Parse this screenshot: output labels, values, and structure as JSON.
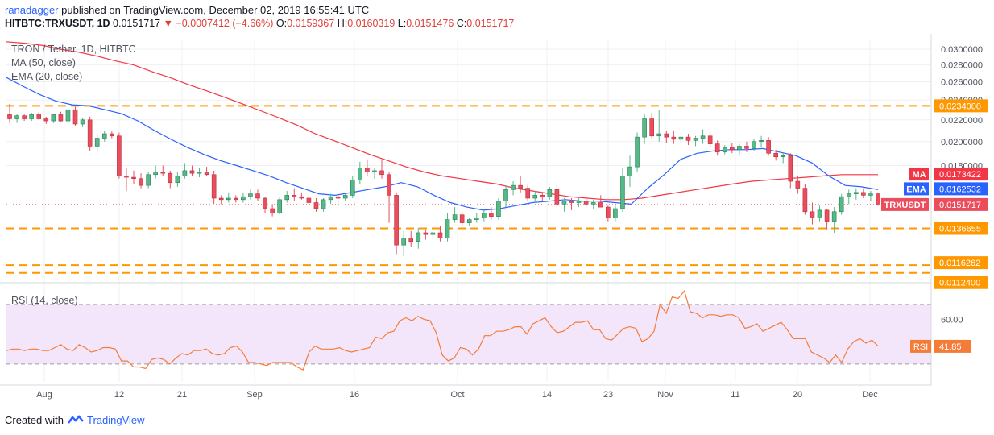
{
  "header": {
    "author": "ranadagger",
    "published": "published on TradingView.com, December 02, 2019 16:55:41 UTC",
    "symbol": "HITBTC:TRXUSDT, 1D",
    "last": "0.0151717",
    "change": "−0.0007412 (−4.66%)",
    "o_label": "O:",
    "o": "0.0159367",
    "h_label": "H:",
    "h": "0.0160319",
    "l_label": "L:",
    "l": "0.0151476",
    "c_label": "C:",
    "c": "0.0151717"
  },
  "legend": {
    "title": "TRON / Tether, 1D, HITBTC",
    "ma": "MA (50, close)",
    "ema": "EMA (20, close)",
    "rsi": "RSI (14, close)"
  },
  "colors": {
    "up": "#53b987",
    "down": "#eb4d5c",
    "ma": "#f23645",
    "ema": "#2962ff",
    "level": "#ff9800",
    "rsi_line": "#f57c38",
    "rsi_band": "#f3e6fb",
    "price_tag": "#eb4d5c"
  },
  "chart_data": [
    {
      "type": "candlestick",
      "title": "TRON / Tether, 1D, HITBTC",
      "x_ticks": [
        "Aug",
        "12",
        "21",
        "Sep",
        "16",
        "Oct",
        "14",
        "23",
        "Nov",
        "11",
        "20",
        "Dec"
      ],
      "y_ticks": [
        "0.0300000",
        "0.0280000",
        "0.0260000",
        "0.0240000",
        "0.0220000",
        "0.0200000",
        "0.0180000"
      ],
      "ylim": [
        0.0108,
        0.0312
      ],
      "log_scale": true,
      "grid": true,
      "horizontal_levels": [
        {
          "value": 0.0234,
          "label": "0.0234000"
        },
        {
          "value": 0.0136655,
          "label": "0.0136655"
        },
        {
          "value": 0.0116262,
          "label": "0.0116262"
        },
        {
          "value": 0.01124,
          "label": "0.0112400"
        }
      ],
      "price_tags": [
        {
          "name": "MA",
          "value": 0.0173422,
          "label": "0.0173422"
        },
        {
          "name": "EMA",
          "value": 0.0162532,
          "label": "0.0162532"
        },
        {
          "name": "TRXUSDT",
          "value": 0.0151717,
          "label": "0.0151717"
        }
      ],
      "candles": [
        [
          0.0225,
          0.0236,
          0.0217,
          0.0221
        ],
        [
          0.0221,
          0.0226,
          0.0217,
          0.0224
        ],
        [
          0.0224,
          0.0226,
          0.0219,
          0.0221
        ],
        [
          0.0221,
          0.0227,
          0.0219,
          0.0225
        ],
        [
          0.0225,
          0.0228,
          0.022,
          0.0221
        ],
        [
          0.0221,
          0.0223,
          0.0216,
          0.0219
        ],
        [
          0.0219,
          0.0226,
          0.0217,
          0.0225
        ],
        [
          0.0225,
          0.0228,
          0.0218,
          0.0219
        ],
        [
          0.0219,
          0.0232,
          0.0216,
          0.023
        ],
        [
          0.023,
          0.0233,
          0.0214,
          0.0216
        ],
        [
          0.0216,
          0.0222,
          0.0213,
          0.022
        ],
        [
          0.022,
          0.0223,
          0.0192,
          0.0196
        ],
        [
          0.0196,
          0.0206,
          0.0192,
          0.0203
        ],
        [
          0.0203,
          0.021,
          0.02,
          0.0207
        ],
        [
          0.0207,
          0.0209,
          0.0203,
          0.0205
        ],
        [
          0.0205,
          0.0208,
          0.017,
          0.0172
        ],
        [
          0.0172,
          0.0178,
          0.0161,
          0.0171
        ],
        [
          0.0171,
          0.0176,
          0.0166,
          0.017
        ],
        [
          0.017,
          0.0174,
          0.0163,
          0.0165
        ],
        [
          0.0165,
          0.0175,
          0.0163,
          0.0173
        ],
        [
          0.0173,
          0.018,
          0.017,
          0.0175
        ],
        [
          0.0175,
          0.018,
          0.0172,
          0.0174
        ],
        [
          0.0174,
          0.0176,
          0.0163,
          0.0167
        ],
        [
          0.0167,
          0.0175,
          0.0164,
          0.0172
        ],
        [
          0.0172,
          0.0182,
          0.017,
          0.0176
        ],
        [
          0.0176,
          0.018,
          0.0172,
          0.0174
        ],
        [
          0.0174,
          0.0178,
          0.0171,
          0.0175
        ],
        [
          0.0175,
          0.0179,
          0.0172,
          0.0173
        ],
        [
          0.0173,
          0.0176,
          0.0152,
          0.0156
        ],
        [
          0.0156,
          0.0158,
          0.0152,
          0.0155
        ],
        [
          0.0155,
          0.016,
          0.0153,
          0.0156
        ],
        [
          0.0156,
          0.0158,
          0.0153,
          0.0155
        ],
        [
          0.0155,
          0.016,
          0.0153,
          0.0157
        ],
        [
          0.0157,
          0.0162,
          0.0155,
          0.0159
        ],
        [
          0.0159,
          0.0162,
          0.0154,
          0.0156
        ],
        [
          0.0156,
          0.0157,
          0.0146,
          0.0149
        ],
        [
          0.0149,
          0.0152,
          0.0144,
          0.0146
        ],
        [
          0.0146,
          0.0157,
          0.0145,
          0.0155
        ],
        [
          0.0155,
          0.0161,
          0.0153,
          0.0158
        ],
        [
          0.0158,
          0.0163,
          0.0154,
          0.0157
        ],
        [
          0.0157,
          0.016,
          0.0155,
          0.0156
        ],
        [
          0.0156,
          0.0158,
          0.0151,
          0.0153
        ],
        [
          0.0153,
          0.0156,
          0.0147,
          0.0149
        ],
        [
          0.0149,
          0.0156,
          0.0147,
          0.0155
        ],
        [
          0.0155,
          0.0159,
          0.0152,
          0.0157
        ],
        [
          0.0157,
          0.016,
          0.0153,
          0.0156
        ],
        [
          0.0156,
          0.0159,
          0.0154,
          0.0158
        ],
        [
          0.0158,
          0.0172,
          0.0156,
          0.0169
        ],
        [
          0.0169,
          0.0183,
          0.0166,
          0.0178
        ],
        [
          0.0178,
          0.0185,
          0.0172,
          0.0175
        ],
        [
          0.0175,
          0.0178,
          0.017,
          0.0176
        ],
        [
          0.0176,
          0.0185,
          0.017,
          0.0173
        ],
        [
          0.0173,
          0.0175,
          0.014,
          0.0158
        ],
        [
          0.0158,
          0.016,
          0.0122,
          0.0127
        ],
        [
          0.0127,
          0.0135,
          0.0121,
          0.0131
        ],
        [
          0.0131,
          0.0135,
          0.0126,
          0.0129
        ],
        [
          0.0129,
          0.0137,
          0.0125,
          0.0134
        ],
        [
          0.0134,
          0.0136,
          0.013,
          0.0133
        ],
        [
          0.0133,
          0.0136,
          0.013,
          0.0134
        ],
        [
          0.0134,
          0.0138,
          0.0129,
          0.0131
        ],
        [
          0.0131,
          0.0146,
          0.0129,
          0.0142
        ],
        [
          0.0142,
          0.015,
          0.014,
          0.0145
        ],
        [
          0.0145,
          0.0147,
          0.0138,
          0.014
        ],
        [
          0.014,
          0.0143,
          0.0138,
          0.0142
        ],
        [
          0.0142,
          0.0146,
          0.014,
          0.0143
        ],
        [
          0.0143,
          0.0148,
          0.0141,
          0.0146
        ],
        [
          0.0146,
          0.015,
          0.0142,
          0.0144
        ],
        [
          0.0144,
          0.0156,
          0.0142,
          0.0154
        ],
        [
          0.0154,
          0.0165,
          0.015,
          0.0162
        ],
        [
          0.0162,
          0.0168,
          0.0158,
          0.0165
        ],
        [
          0.0165,
          0.0172,
          0.016,
          0.0163
        ],
        [
          0.0163,
          0.0165,
          0.0154,
          0.0156
        ],
        [
          0.0156,
          0.0161,
          0.0153,
          0.0158
        ],
        [
          0.0158,
          0.016,
          0.0154,
          0.0157
        ],
        [
          0.0157,
          0.0164,
          0.0155,
          0.0162
        ],
        [
          0.0162,
          0.0165,
          0.015,
          0.0152
        ],
        [
          0.0152,
          0.0156,
          0.0147,
          0.0154
        ],
        [
          0.0154,
          0.0156,
          0.0148,
          0.0153
        ],
        [
          0.0153,
          0.0156,
          0.015,
          0.0154
        ],
        [
          0.0154,
          0.0156,
          0.015,
          0.0152
        ],
        [
          0.0152,
          0.0155,
          0.0149,
          0.0153
        ],
        [
          0.0153,
          0.0158,
          0.0151,
          0.015
        ],
        [
          0.015,
          0.0151,
          0.0141,
          0.0143
        ],
        [
          0.0143,
          0.0152,
          0.0141,
          0.0149
        ],
        [
          0.0149,
          0.0178,
          0.0147,
          0.0172
        ],
        [
          0.0172,
          0.0188,
          0.0164,
          0.0179
        ],
        [
          0.0179,
          0.0208,
          0.0175,
          0.0204
        ],
        [
          0.0204,
          0.0226,
          0.0198,
          0.0221
        ],
        [
          0.0221,
          0.0227,
          0.0203,
          0.0205
        ],
        [
          0.0205,
          0.023,
          0.02,
          0.0207
        ],
        [
          0.0207,
          0.021,
          0.0199,
          0.0204
        ],
        [
          0.0204,
          0.021,
          0.0198,
          0.0202
        ],
        [
          0.0202,
          0.0206,
          0.0198,
          0.0204
        ],
        [
          0.0204,
          0.0207,
          0.0197,
          0.0201
        ],
        [
          0.0201,
          0.0205,
          0.0196,
          0.0203
        ],
        [
          0.0203,
          0.0211,
          0.0198,
          0.0205
        ],
        [
          0.0205,
          0.0208,
          0.0195,
          0.0198
        ],
        [
          0.0198,
          0.0201,
          0.0188,
          0.0191
        ],
        [
          0.0191,
          0.0197,
          0.0189,
          0.0195
        ],
        [
          0.0195,
          0.0199,
          0.019,
          0.0193
        ],
        [
          0.0193,
          0.0198,
          0.0189,
          0.0196
        ],
        [
          0.0196,
          0.02,
          0.0191,
          0.0194
        ],
        [
          0.0194,
          0.0202,
          0.0192,
          0.02
        ],
        [
          0.02,
          0.0205,
          0.0195,
          0.0201
        ],
        [
          0.0201,
          0.0204,
          0.0188,
          0.019
        ],
        [
          0.019,
          0.0193,
          0.0184,
          0.0187
        ],
        [
          0.0187,
          0.019,
          0.0182,
          0.0188
        ],
        [
          0.0188,
          0.019,
          0.0163,
          0.0168
        ],
        [
          0.0168,
          0.0172,
          0.0159,
          0.0163
        ],
        [
          0.0163,
          0.0166,
          0.0145,
          0.0147
        ],
        [
          0.0147,
          0.0153,
          0.0139,
          0.0143
        ],
        [
          0.0143,
          0.0151,
          0.0141,
          0.0148
        ],
        [
          0.0148,
          0.0149,
          0.0136,
          0.0141
        ],
        [
          0.0141,
          0.015,
          0.0134,
          0.0147
        ],
        [
          0.0147,
          0.0159,
          0.0145,
          0.0157
        ],
        [
          0.0157,
          0.0162,
          0.0152,
          0.0159
        ],
        [
          0.0159,
          0.0163,
          0.0155,
          0.016
        ],
        [
          0.016,
          0.0163,
          0.0156,
          0.0158
        ],
        [
          0.0158,
          0.0161,
          0.0154,
          0.0159
        ],
        [
          0.0159,
          0.016,
          0.0151,
          0.0152
        ]
      ],
      "ma50": [
        0.031,
        0.0308,
        0.0305,
        0.03,
        0.0296,
        0.0291,
        0.0285,
        0.028,
        0.0272,
        0.0265,
        0.0257,
        0.025,
        0.0243,
        0.0236,
        0.0229,
        0.0222,
        0.0215,
        0.0207,
        0.0201,
        0.0195,
        0.0189,
        0.0184,
        0.0179,
        0.0175,
        0.0172,
        0.017,
        0.0168,
        0.0166,
        0.0163,
        0.0161,
        0.0159,
        0.0157,
        0.0156,
        0.0155,
        0.0155,
        0.0156,
        0.0158,
        0.016,
        0.0162,
        0.0164,
        0.0166,
        0.0168,
        0.0169,
        0.017,
        0.0171,
        0.0172,
        0.0173,
        0.0173,
        0.0173
      ],
      "ema20": [
        0.0265,
        0.0255,
        0.0246,
        0.0239,
        0.0235,
        0.0234,
        0.023,
        0.0226,
        0.0219,
        0.021,
        0.0202,
        0.0195,
        0.0189,
        0.0184,
        0.018,
        0.0176,
        0.0172,
        0.0167,
        0.0163,
        0.0159,
        0.0158,
        0.016,
        0.0162,
        0.0164,
        0.0167,
        0.0164,
        0.0158,
        0.0153,
        0.015,
        0.0148,
        0.0149,
        0.0151,
        0.0153,
        0.0154,
        0.0155,
        0.0154,
        0.0154,
        0.0153,
        0.0152,
        0.0163,
        0.0173,
        0.0185,
        0.019,
        0.0192,
        0.0193,
        0.0193,
        0.0194,
        0.0191,
        0.0188,
        0.0182,
        0.0172,
        0.0165,
        0.0164,
        0.0162
      ]
    },
    {
      "type": "line",
      "title": "RSI (14, close)",
      "y_ticks": [
        "60.00"
      ],
      "ylim": [
        18,
        84
      ],
      "band": [
        30,
        70
      ],
      "last_label": {
        "name": "RSI",
        "value": 41.85,
        "label": "41.85"
      },
      "values": [
        39,
        40,
        40,
        39,
        40,
        40,
        39,
        39,
        41,
        43,
        40,
        39,
        43,
        41,
        38,
        39,
        41,
        41,
        40,
        32,
        32,
        28,
        28,
        27,
        33,
        34,
        33,
        30,
        34,
        37,
        36,
        39,
        39,
        40,
        37,
        36,
        37,
        41,
        42,
        38,
        31,
        31,
        30,
        29,
        31,
        31,
        31,
        31,
        28,
        26,
        38,
        42,
        40,
        40,
        40,
        41,
        39,
        38,
        39,
        40,
        41,
        48,
        47,
        51,
        52,
        59,
        61,
        59,
        62,
        60,
        59,
        51,
        36,
        32,
        34,
        41,
        40,
        36,
        40,
        49,
        49,
        52,
        52,
        53,
        55,
        55,
        50,
        57,
        59,
        61,
        55,
        51,
        52,
        55,
        58,
        58,
        59,
        53,
        53,
        47,
        46,
        50,
        54,
        55,
        54,
        45,
        47,
        52,
        70,
        64,
        75,
        74,
        79,
        65,
        64,
        61,
        63,
        63,
        62,
        63,
        63,
        61,
        54,
        55,
        57,
        52,
        54,
        56,
        58,
        53,
        47,
        47,
        47,
        38,
        36,
        34,
        31,
        36,
        31,
        40,
        45,
        47,
        44,
        46,
        42
      ]
    }
  ],
  "footer": {
    "created": "Created with",
    "brand": "TradingView"
  }
}
